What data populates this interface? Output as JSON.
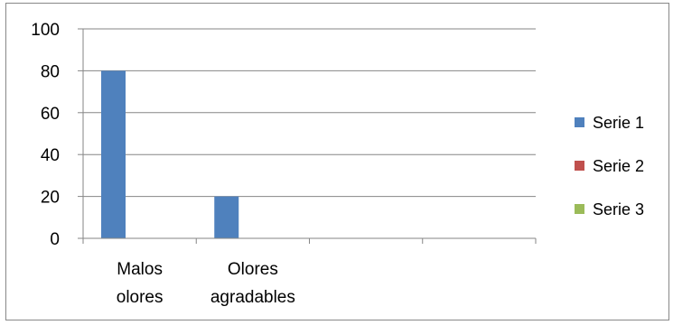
{
  "chart_data": {
    "type": "bar",
    "categories": [
      [
        "Malos",
        "olores"
      ],
      [
        "Olores",
        "agradables"
      ],
      [],
      []
    ],
    "series": [
      {
        "name": "Serie 1",
        "color": "#4F81BD",
        "values": [
          80,
          20,
          null,
          null
        ]
      },
      {
        "name": "Serie 2",
        "color": "#C0504D",
        "values": [
          null,
          null,
          null,
          null
        ]
      },
      {
        "name": "Serie 3",
        "color": "#9BBB59",
        "values": [
          null,
          null,
          null,
          null
        ]
      }
    ],
    "ylim": [
      0,
      100
    ],
    "yticks": [
      0,
      20,
      40,
      60,
      80,
      100
    ],
    "grid": true,
    "legend_position": "right"
  }
}
